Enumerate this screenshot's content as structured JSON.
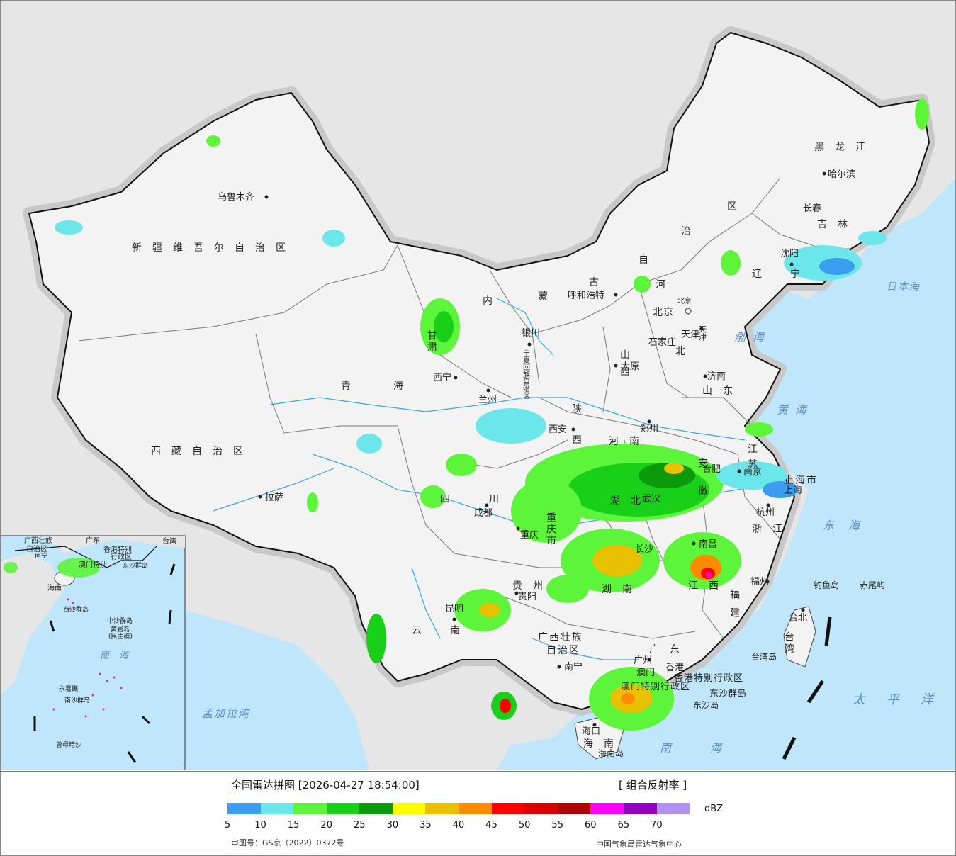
{
  "legend": {
    "title": "全国雷达拼图 [2026-04-27 18:54:00]",
    "product": "[ 组合反射率 ]",
    "unit": "dBZ",
    "colors": [
      "#3a9df0",
      "#6be6ea",
      "#5df53a",
      "#19d019",
      "#0a9a0a",
      "#ffff00",
      "#e8c200",
      "#ff8c00",
      "#ff0000",
      "#d80000",
      "#b00000",
      "#ff00ff",
      "#9400c0",
      "#b090f0"
    ],
    "ticks": [
      "5",
      "10",
      "15",
      "20",
      "25",
      "30",
      "35",
      "40",
      "45",
      "50",
      "55",
      "60",
      "65",
      "70"
    ],
    "approval": "审图号：GS京（2022）0372号",
    "source": "中国气象局雷达气象中心"
  },
  "colors": {
    "sea": "#bfe6fb",
    "foreign_land": "#e6e6e6",
    "china_land": "#f3f3f3",
    "rivers": "#3aa6e8"
  },
  "provinces": {
    "xinjiang": "新疆维吾尔自治区",
    "xizang": "西藏自治区",
    "qinghai": "青海",
    "gansu": "甘肃",
    "neimenggu_1": "内",
    "neimenggu_2": "蒙",
    "neimenggu_3": "古",
    "neimenggu_4": "自",
    "neimenggu_5": "治",
    "neimenggu_6": "区",
    "heilongjiang": "黑龙江",
    "jilin": "吉林",
    "liaoning": "辽宁",
    "ningxia": "宁夏回族自治区",
    "shaanxi": "陕西",
    "shanxi": "山西",
    "hebei_1": "河",
    "hebei_2": "北",
    "shandong": "山东",
    "henan": "河南",
    "jiangsu": "江苏",
    "anhui": "安徽",
    "shanghai": "上海市",
    "zhejiang": "浙江",
    "hubei": "湖北",
    "hunan": "湖南",
    "jiangxi": "江西",
    "fujian": "福建",
    "sichuan": "四川",
    "chongqing": "重庆市",
    "guizhou": "贵州",
    "yunnan": "云南",
    "guangxi_1": "广西壮族",
    "guangxi_2": "自治区",
    "guangdong": "广东",
    "hainan": "海南",
    "taiwan": "台湾",
    "hongkong": "香港特别行政区",
    "macau": "澳门特别行政区",
    "beijing": "北京",
    "tianjin": "天津"
  },
  "cities": {
    "urumqi": "乌鲁木齐",
    "lhasa": "拉萨",
    "xining": "西宁",
    "lanzhou": "兰州",
    "yinchuan": "银川",
    "hohhot": "呼和浩特",
    "beijing_capital": "北京",
    "tianjin_city": "天津",
    "shijiazhuang": "石家庄",
    "taiyuan": "太原",
    "jinan": "济南",
    "zhengzhou": "郑州",
    "xian": "西安",
    "chengdu": "成都",
    "chongqing_city": "重庆",
    "guiyang": "贵阳",
    "kunming": "昆明",
    "nanning": "南宁",
    "guangzhou": "广州",
    "hongkong_city": "香港",
    "macau_city": "澳门",
    "haikou": "海口",
    "hainan_island": "海南岛",
    "fuzhou": "福州",
    "taipei": "台北",
    "taiwan_island": "台湾岛",
    "nanchang": "南昌",
    "changsha": "长沙",
    "wuhan": "武汉",
    "hefei": "合肥",
    "nanjing": "南京",
    "shanghai_city": "上海",
    "hangzhou": "杭州",
    "shenyang": "沈阳",
    "changchun": "长春",
    "harbin": "哈尔滨",
    "diaoyu": "钓鱼岛",
    "chiwei": "赤尾屿",
    "dongsha_islands": "东沙群岛",
    "dongsha_island": "东沙岛"
  },
  "seas": {
    "bohai": "渤海",
    "huanghai": "黄海",
    "donghai": "东海",
    "nanhai": "南海",
    "taipingyang": "太平洋",
    "japan_sea": "日本海",
    "bengal_bay": "孟加拉湾"
  },
  "inset": {
    "guangxi": "广西壮族",
    "guangxi2": "自治区",
    "guangdong": "广东",
    "taiwan": "台湾",
    "nanning": "南宁",
    "hk": "香港特别",
    "hk2": "行政区",
    "macau": "澳门特别",
    "dongsha": "东沙群岛",
    "hainan": "海南",
    "xisha": "西沙群岛",
    "zhongsha": "中沙群岛",
    "huangyan": "黄岩岛",
    "huangyan2": "(民主礁)",
    "nanhai": "南海",
    "nansha": "南沙群岛",
    "yongshu": "永暑礁",
    "zengmu": "曾母暗沙"
  }
}
